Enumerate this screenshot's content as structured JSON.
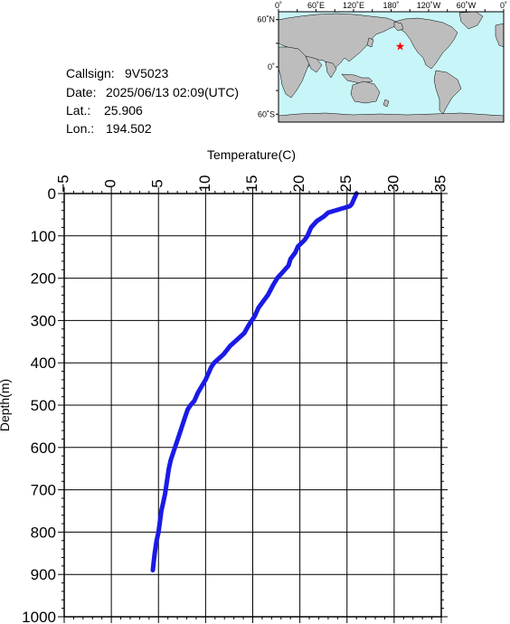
{
  "info": {
    "callsign_label": "Callsign:",
    "callsign": "9V5023",
    "date_label": "Date:",
    "date": "2025/06/13 02:09(UTC)",
    "lat_label": "Lat.:",
    "lat": "25.906",
    "lon_label": "Lon.:",
    "lon": "194.502"
  },
  "map": {
    "lon_ticks": [
      "0˚",
      "60˚E",
      "120˚E",
      "180˚",
      "120˚W",
      "60˚W",
      "0˚"
    ],
    "lat_ticks": [
      "60˚N",
      "0˚",
      "60˚S"
    ],
    "ocean_color": "#c8f5f8",
    "land_color": "#bdbdbd",
    "marker_color": "#ff0000",
    "marker_icon": "star-icon"
  },
  "chart_data": {
    "type": "line",
    "xlabel": "Temperature(C)",
    "ylabel": "Depth(m)",
    "xlim": [
      -5,
      35
    ],
    "ylim": [
      0,
      1000
    ],
    "x_axis_position": "top",
    "y_inverted": true,
    "grid": true,
    "x_ticks": [
      -5,
      0,
      5,
      10,
      15,
      20,
      25,
      30,
      35
    ],
    "y_ticks": [
      0,
      100,
      200,
      300,
      400,
      500,
      600,
      700,
      800,
      900,
      1000
    ],
    "line_color": "#1a1ae6",
    "series": [
      {
        "temperature": [
          26.0,
          25.8,
          25.6,
          25.5,
          25.3,
          23.0,
          22.5,
          21.8,
          21.2,
          20.8,
          20.5,
          19.8,
          19.5,
          19.0,
          18.8,
          18.2,
          17.6,
          17.2,
          16.6,
          16.1,
          15.6,
          15.2,
          14.6,
          14.1,
          13.6,
          13.1,
          12.6,
          11.9,
          11.4,
          10.9,
          10.6,
          10.4,
          10.0,
          9.6,
          9.2,
          8.8,
          8.4,
          8.1,
          7.8,
          7.5,
          7.2,
          6.9,
          6.6,
          6.3,
          6.1,
          5.9,
          5.7,
          5.5,
          5.3,
          5.0,
          4.8,
          4.6,
          4.5,
          4.4
        ],
        "depth": [
          0,
          10,
          20,
          25,
          30,
          45,
          55,
          65,
          80,
          100,
          110,
          125,
          140,
          155,
          170,
          185,
          200,
          215,
          240,
          255,
          270,
          290,
          310,
          330,
          340,
          350,
          360,
          380,
          390,
          400,
          410,
          420,
          440,
          455,
          470,
          490,
          500,
          510,
          530,
          550,
          570,
          590,
          610,
          630,
          650,
          680,
          710,
          730,
          750,
          800,
          820,
          850,
          870,
          890
        ]
      }
    ]
  }
}
